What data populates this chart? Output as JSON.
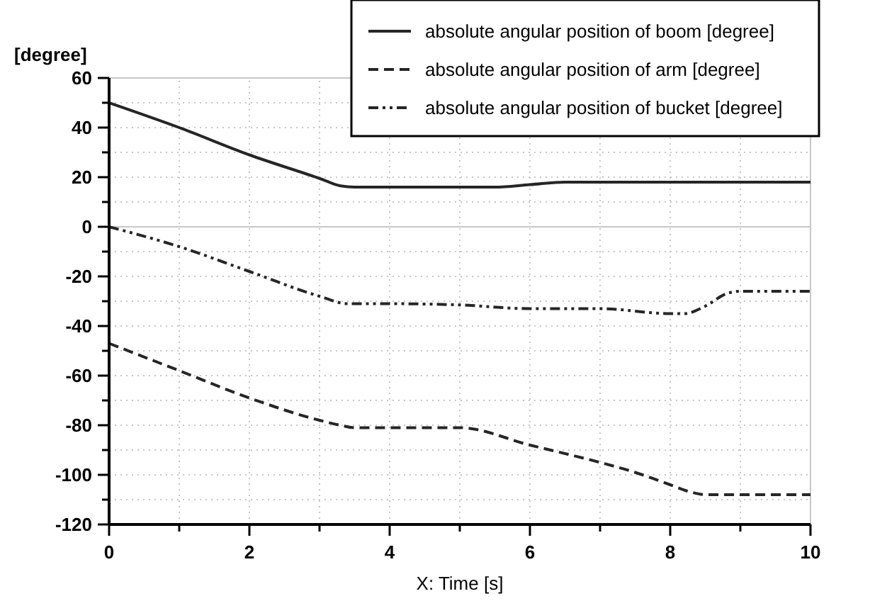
{
  "chart_data": {
    "type": "line",
    "ylabel": "[degree]",
    "xlabel": "X: Time [s]",
    "xlim": [
      0,
      10
    ],
    "ylim": [
      -120,
      60
    ],
    "xticks": [
      0,
      {
        "value": 1,
        "label": null
      },
      2,
      {
        "value": 3,
        "label": null
      },
      4,
      {
        "value": 5,
        "label": null
      },
      6,
      {
        "value": 7,
        "label": null
      },
      8,
      {
        "value": 9,
        "label": null
      },
      10
    ],
    "yticks": [
      -120,
      {
        "value": -110,
        "label": null
      },
      -100,
      {
        "value": -90,
        "label": null
      },
      -80,
      {
        "value": -70,
        "label": null
      },
      -60,
      {
        "value": -50,
        "label": null
      },
      -40,
      {
        "value": -30,
        "label": null
      },
      -20,
      {
        "value": -10,
        "label": null
      },
      0,
      {
        "value": 10,
        "label": null
      },
      20,
      {
        "value": 30,
        "label": null
      },
      40,
      {
        "value": 50,
        "label": null
      },
      60
    ],
    "grid": true,
    "legend": "top right",
    "marker": "none",
    "ref_lines": [
      {
        "axis": "y",
        "value": 0,
        "color": "#c8c8c8",
        "line_style": "solid"
      }
    ],
    "series": [
      {
        "name": "absolute angular position of boom [degree]",
        "color": "#262626",
        "line_style": "solid",
        "x": [
          0,
          1,
          2,
          3,
          3.3,
          3.5,
          4,
          5,
          5.5,
          6,
          6.5,
          7,
          8,
          9,
          10
        ],
        "values": [
          50,
          40,
          29,
          19.5,
          16.5,
          16,
          16,
          16,
          16,
          17,
          18,
          18,
          18,
          18,
          18
        ]
      },
      {
        "name": "absolute angular position of arm [degree]",
        "color": "#262626",
        "line_style": "dashed",
        "x": [
          0,
          1,
          2,
          3,
          3.3,
          3.5,
          4,
          5,
          6,
          7,
          7.5,
          8,
          8.3,
          8.5,
          9,
          10
        ],
        "values": [
          -47,
          -58,
          -69,
          -78,
          -80,
          -81,
          -81,
          -81,
          -88,
          -95,
          -99,
          -104,
          -107,
          -108,
          -108,
          -108
        ]
      },
      {
        "name": "absolute angular position of bucket [degree]",
        "color": "#262626",
        "line_style": "dotted",
        "x": [
          0,
          1,
          2,
          3,
          3.4,
          4,
          5,
          6,
          7,
          8,
          8.2,
          8.5,
          8.8,
          9,
          10
        ],
        "values": [
          0,
          -8,
          -18,
          -28,
          -31,
          -31,
          -31.5,
          -33,
          -33,
          -35,
          -35,
          -32,
          -27,
          -26,
          -26
        ]
      }
    ]
  }
}
